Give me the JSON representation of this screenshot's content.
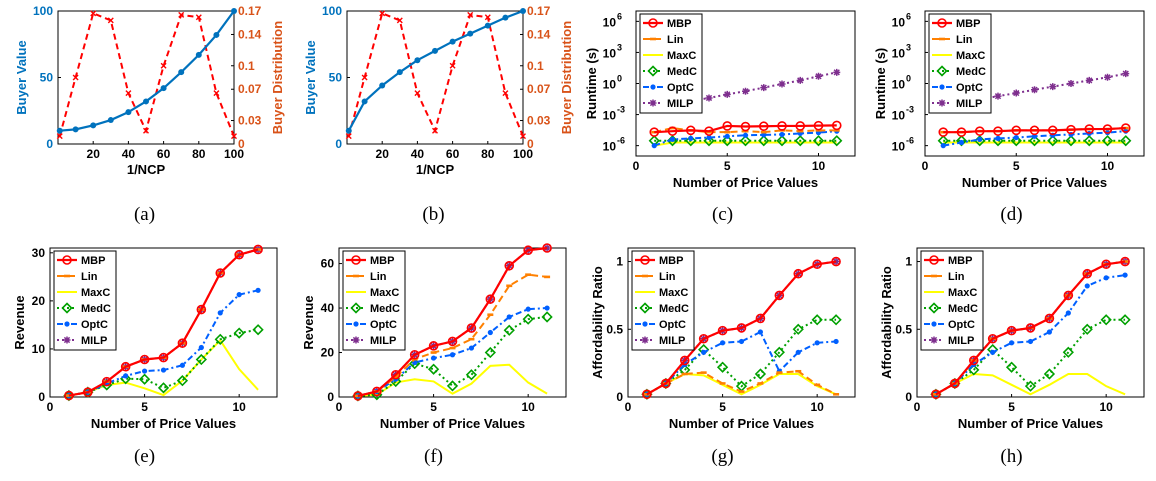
{
  "colors": {
    "blue": "#0072BD",
    "orange_axis": "#D95319",
    "red_dashed": "#FF0000",
    "MBP": "#FF0000",
    "Lin": "#FF8000",
    "MaxC": "#FFFF00",
    "MedC": "#00A000",
    "OptC": "#0060FF",
    "MILP": "#7E2F8E"
  },
  "chart_data": [
    {
      "caption": "(a)",
      "type": "line",
      "xlabel": "1/NCP",
      "ylabel": "Buyer Value",
      "ylabel_right": "Buyer Distribution",
      "xlim": [
        0,
        100
      ],
      "ylim": [
        0,
        100
      ],
      "ylim_right": [
        0,
        0.17
      ],
      "xticks": [
        20,
        40,
        60,
        80,
        100
      ],
      "yticks": [
        0,
        50,
        100
      ],
      "yticks_right": [
        0,
        0.03,
        0.07,
        0.1,
        0.14,
        0.17
      ],
      "yticklabels_right": [
        "0",
        "0.03",
        "0.07",
        "0.1",
        "0.14",
        "0.17"
      ],
      "x": [
        1,
        10,
        20,
        30,
        40,
        50,
        60,
        70,
        80,
        90,
        100
      ],
      "series": [
        {
          "axis": "left",
          "values": [
            10,
            11,
            14,
            18,
            24,
            32,
            42,
            54,
            67,
            82,
            100
          ]
        },
        {
          "axis": "right",
          "values": [
            0.01,
            0.085,
            0.167,
            0.158,
            0.065,
            0.017,
            0.1,
            0.165,
            0.162,
            0.065,
            0.01
          ]
        }
      ]
    },
    {
      "caption": "(b)",
      "type": "line",
      "xlabel": "1/NCP",
      "ylabel": "Buyer Value",
      "ylabel_right": "Buyer Distribution",
      "xlim": [
        0,
        100
      ],
      "ylim": [
        0,
        100
      ],
      "ylim_right": [
        0,
        0.17
      ],
      "xticks": [
        20,
        40,
        60,
        80,
        100
      ],
      "yticks": [
        0,
        50,
        100
      ],
      "yticks_right": [
        0,
        0.03,
        0.07,
        0.1,
        0.14,
        0.17
      ],
      "yticklabels_right": [
        "0",
        "0.03",
        "0.07",
        "0.1",
        "0.14",
        "0.17"
      ],
      "x": [
        1,
        10,
        20,
        30,
        40,
        50,
        60,
        70,
        80,
        90,
        100
      ],
      "series": [
        {
          "axis": "left",
          "values": [
            10,
            32,
            44,
            54,
            63,
            70,
            77,
            83,
            89,
            95,
            100
          ]
        },
        {
          "axis": "right",
          "values": [
            0.01,
            0.085,
            0.167,
            0.158,
            0.065,
            0.017,
            0.1,
            0.165,
            0.162,
            0.065,
            0.01
          ]
        }
      ]
    },
    {
      "caption": "(c)",
      "type": "line",
      "yscale": "log",
      "xlabel": "Number of Price Values",
      "ylabel": "Runtime (s)",
      "xlim": [
        0,
        12
      ],
      "ylim_exp": [
        -7,
        7
      ],
      "xticks": [
        0,
        5,
        10
      ],
      "yticks_exp": [
        -6,
        -3,
        0,
        3,
        6
      ],
      "legend": "top-left",
      "x": [
        1,
        2,
        3,
        4,
        5,
        6,
        7,
        8,
        9,
        10,
        11
      ],
      "series": [
        {
          "name": "MBP",
          "values": [
            2e-05,
            2.5e-05,
            3e-05,
            2.5e-05,
            8e-05,
            7e-05,
            7.5e-05,
            8e-05,
            8e-05,
            8.5e-05,
            9e-05
          ]
        },
        {
          "name": "Lin",
          "values": [
            2e-05,
            5e-05,
            3e-05,
            2e-05,
            2e-05,
            2.5e-05,
            2e-05,
            3e-05,
            2.5e-05,
            3e-05,
            3e-05
          ]
        },
        {
          "name": "MaxC",
          "values": [
            1e-06,
            2e-06,
            2e-06,
            2e-06,
            2e-06,
            2e-06,
            2e-06,
            2e-06,
            2e-06,
            2e-06,
            2e-06
          ]
        },
        {
          "name": "MedC",
          "values": [
            3e-06,
            3e-06,
            3e-06,
            3e-06,
            3e-06,
            3e-06,
            3e-06,
            3e-06,
            3e-06,
            3e-06,
            3e-06
          ]
        },
        {
          "name": "OptC",
          "values": [
            1e-06,
            4e-06,
            5e-06,
            6e-06,
            8e-06,
            1e-05,
            1.1e-05,
            1.2e-05,
            1.5e-05,
            1.8e-05,
            2.5e-05
          ]
        },
        {
          "name": "MILP",
          "values": [
            0.005,
            0.01,
            0.02,
            0.04,
            0.09,
            0.18,
            0.4,
            0.9,
            2,
            5,
            12
          ]
        }
      ]
    },
    {
      "caption": "(d)",
      "type": "line",
      "yscale": "log",
      "xlabel": "Number of Price Values",
      "ylabel": "Runtime (s)",
      "xlim": [
        0,
        12
      ],
      "ylim_exp": [
        -7,
        7
      ],
      "xticks": [
        0,
        5,
        10
      ],
      "yticks_exp": [
        -6,
        -3,
        0,
        3,
        6
      ],
      "legend": "top-left",
      "x": [
        1,
        2,
        3,
        4,
        5,
        6,
        7,
        8,
        9,
        10,
        11
      ],
      "series": [
        {
          "name": "MBP",
          "values": [
            2e-05,
            2e-05,
            2.5e-05,
            2.5e-05,
            3e-05,
            3e-05,
            3e-05,
            3.5e-05,
            4e-05,
            4e-05,
            5e-05
          ]
        },
        {
          "name": "Lin",
          "values": [
            2e-05,
            2e-05,
            2.5e-05,
            2.5e-05,
            3e-05,
            3e-05,
            3e-05,
            3.5e-05,
            4e-05,
            4e-05,
            5e-05
          ]
        },
        {
          "name": "MaxC",
          "values": [
            2e-06,
            2e-06,
            2e-06,
            2e-06,
            2e-06,
            2e-06,
            2e-06,
            2e-06,
            2e-06,
            2e-06,
            2e-06
          ]
        },
        {
          "name": "MedC",
          "values": [
            3e-06,
            3e-06,
            3e-06,
            3e-06,
            3e-06,
            3e-06,
            3e-06,
            3e-06,
            3e-06,
            3e-06,
            3e-06
          ]
        },
        {
          "name": "OptC",
          "values": [
            1e-06,
            2e-06,
            4e-06,
            5e-06,
            6e-06,
            8e-06,
            1e-05,
            1.2e-05,
            1.5e-05,
            1.8e-05,
            2.5e-05
          ]
        },
        {
          "name": "MILP",
          "values": [
            0.008,
            0.015,
            0.03,
            0.06,
            0.12,
            0.25,
            0.5,
            1,
            2,
            4,
            9
          ]
        }
      ]
    },
    {
      "caption": "(e)",
      "type": "line",
      "xlabel": "Number of Price Values",
      "ylabel": "Revenue",
      "xlim": [
        0,
        12
      ],
      "ylim": [
        0,
        31
      ],
      "xticks": [
        0,
        5,
        10
      ],
      "yticks": [
        0,
        10,
        20,
        30
      ],
      "legend": "top-left",
      "x": [
        1,
        2,
        3,
        4,
        5,
        6,
        7,
        8,
        9,
        10,
        11
      ],
      "series": [
        {
          "name": "MBP",
          "values": [
            0.3,
            1,
            3.2,
            6.3,
            7.8,
            8.2,
            11.2,
            18.2,
            25.8,
            29.6,
            30.7
          ]
        },
        {
          "name": "Lin",
          "values": [
            0.3,
            1,
            3.2,
            6.3,
            7.8,
            8.2,
            11.2,
            18.2,
            25.8,
            29.6,
            30.7
          ]
        },
        {
          "name": "MaxC",
          "values": [
            0.3,
            1,
            2.5,
            3,
            1.8,
            0.4,
            3.4,
            7.8,
            11.8,
            5.8,
            1.5
          ]
        },
        {
          "name": "MedC",
          "values": [
            0.3,
            1,
            2.5,
            3.8,
            3.7,
            1.9,
            3.4,
            7.8,
            12,
            13.3,
            14
          ]
        },
        {
          "name": "OptC",
          "values": [
            0.3,
            1,
            2.8,
            4.4,
            5.4,
            5.6,
            6.6,
            10.3,
            17.5,
            21.3,
            22.2
          ]
        },
        {
          "name": "MILP",
          "values": [
            0.3,
            1,
            3.2,
            6.3,
            7.8,
            8.2,
            11.2,
            18.2,
            25.8,
            29.6,
            30.7
          ]
        }
      ]
    },
    {
      "caption": "(f)",
      "type": "line",
      "xlabel": "Number of Price Values",
      "ylabel": "Revenue",
      "xlim": [
        0,
        12
      ],
      "ylim": [
        0,
        67
      ],
      "xticks": [
        0,
        5,
        10
      ],
      "yticks": [
        0,
        20,
        40,
        60
      ],
      "legend": "top-left",
      "x": [
        1,
        2,
        3,
        4,
        5,
        6,
        7,
        8,
        9,
        10,
        11
      ],
      "series": [
        {
          "name": "MBP",
          "values": [
            0.5,
            2.5,
            10,
            19,
            23,
            25,
            31,
            44,
            59,
            66,
            67
          ]
        },
        {
          "name": "Lin",
          "values": [
            0.5,
            2.5,
            9,
            17,
            20,
            22,
            26,
            37,
            50,
            55,
            54
          ]
        },
        {
          "name": "MaxC",
          "values": [
            0.5,
            1,
            6.5,
            8,
            7,
            1.5,
            6,
            14,
            14.5,
            6.5,
            1.5
          ]
        },
        {
          "name": "MedC",
          "values": [
            0.5,
            1,
            7,
            15,
            12.5,
            5,
            10,
            20,
            30,
            35,
            36
          ]
        },
        {
          "name": "OptC",
          "values": [
            0.5,
            2.5,
            8,
            15.5,
            17.5,
            19,
            22,
            29,
            36,
            39.5,
            40
          ]
        },
        {
          "name": "MILP",
          "values": [
            0.5,
            2.5,
            10,
            19,
            23,
            25,
            31,
            44,
            59,
            66,
            67
          ]
        }
      ]
    },
    {
      "caption": "(g)",
      "type": "line",
      "xlabel": "Number of Price Values",
      "ylabel": "Affordability Ratio",
      "xlim": [
        0,
        12
      ],
      "ylim": [
        0,
        1.1
      ],
      "xticks": [
        0,
        5,
        10
      ],
      "yticks": [
        0,
        0.5,
        1
      ],
      "legend": "top-left",
      "x": [
        1,
        2,
        3,
        4,
        5,
        6,
        7,
        8,
        9,
        10,
        11
      ],
      "series": [
        {
          "name": "MBP",
          "values": [
            0.02,
            0.1,
            0.27,
            0.43,
            0.49,
            0.51,
            0.58,
            0.75,
            0.91,
            0.98,
            1
          ]
        },
        {
          "name": "Lin",
          "values": [
            0.02,
            0.1,
            0.17,
            0.18,
            0.1,
            0.04,
            0.1,
            0.18,
            0.19,
            0.09,
            0.02
          ]
        },
        {
          "name": "MaxC",
          "values": [
            0.02,
            0.1,
            0.17,
            0.16,
            0.09,
            0.02,
            0.09,
            0.17,
            0.17,
            0.08,
            0.02
          ]
        },
        {
          "name": "MedC",
          "values": [
            0.02,
            0.1,
            0.2,
            0.35,
            0.22,
            0.08,
            0.17,
            0.33,
            0.5,
            0.57,
            0.57
          ]
        },
        {
          "name": "OptC",
          "values": [
            0.02,
            0.1,
            0.24,
            0.33,
            0.4,
            0.41,
            0.48,
            0.19,
            0.33,
            0.4,
            0.41
          ]
        },
        {
          "name": "MILP",
          "values": [
            0.02,
            0.1,
            0.27,
            0.43,
            0.49,
            0.51,
            0.58,
            0.75,
            0.91,
            0.98,
            1
          ]
        }
      ]
    },
    {
      "caption": "(h)",
      "type": "line",
      "xlabel": "Number of Price Values",
      "ylabel": "Affordability Ratio",
      "xlim": [
        0,
        12
      ],
      "ylim": [
        0,
        1.1
      ],
      "xticks": [
        0,
        5,
        10
      ],
      "yticks": [
        0,
        0.5,
        1
      ],
      "legend": "top-left",
      "x": [
        1,
        2,
        3,
        4,
        5,
        6,
        7,
        8,
        9,
        10,
        11
      ],
      "series": [
        {
          "name": "MBP",
          "values": [
            0.02,
            0.1,
            0.27,
            0.43,
            0.49,
            0.51,
            0.58,
            0.75,
            0.91,
            0.98,
            1
          ]
        },
        {
          "name": "Lin",
          "values": [
            0.02,
            0.1,
            0.27,
            0.43,
            0.49,
            0.51,
            0.58,
            0.75,
            0.91,
            0.98,
            1
          ]
        },
        {
          "name": "MaxC",
          "values": [
            0.02,
            0.1,
            0.17,
            0.16,
            0.09,
            0.02,
            0.09,
            0.17,
            0.17,
            0.08,
            0.02
          ]
        },
        {
          "name": "MedC",
          "values": [
            0.02,
            0.1,
            0.2,
            0.35,
            0.22,
            0.08,
            0.17,
            0.33,
            0.5,
            0.57,
            0.57
          ]
        },
        {
          "name": "OptC",
          "values": [
            0.02,
            0.1,
            0.24,
            0.33,
            0.4,
            0.41,
            0.48,
            0.62,
            0.82,
            0.88,
            0.9
          ]
        },
        {
          "name": "MILP",
          "values": [
            0.02,
            0.1,
            0.27,
            0.43,
            0.49,
            0.51,
            0.58,
            0.75,
            0.91,
            0.98,
            1
          ]
        }
      ]
    }
  ]
}
